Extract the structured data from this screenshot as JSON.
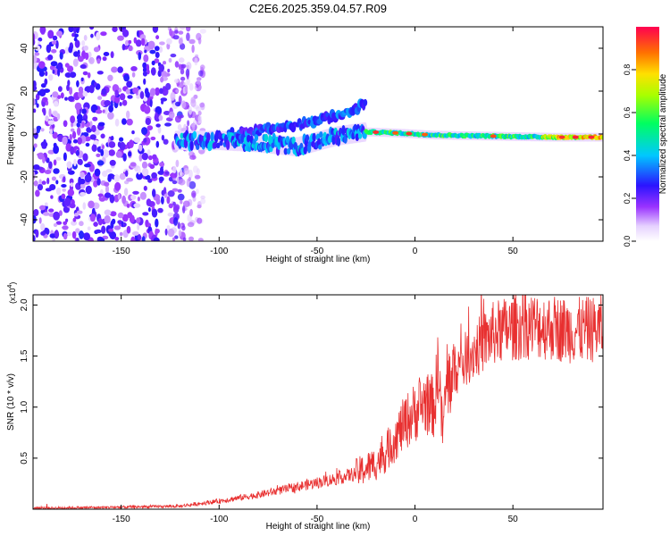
{
  "title": "C2E6.2025.359.04.57.R09",
  "chart_data": [
    {
      "type": "heatmap",
      "name": "spectrogram",
      "xlabel": "Height of straight line (km)",
      "ylabel": "Frequency (Hz)",
      "xlim": [
        -195,
        96
      ],
      "ylim": [
        -50,
        50
      ],
      "xticks": [
        -150,
        -100,
        -50,
        0,
        50
      ],
      "yticks": [
        -40,
        -20,
        0,
        20,
        40
      ],
      "noise_region_x": [
        -195,
        -108
      ],
      "signal_start_x": -122,
      "signal_track": [
        {
          "x": -120,
          "f": -3
        },
        {
          "x": -100,
          "f": -3
        },
        {
          "x": -80,
          "f": -4
        },
        {
          "x": -60,
          "f": -6
        },
        {
          "x": -40,
          "f": -1
        },
        {
          "x": -25,
          "f": 1
        },
        {
          "x": -10,
          "f": 0.5
        },
        {
          "x": 10,
          "f": -0.5
        },
        {
          "x": 40,
          "f": -1
        },
        {
          "x": 70,
          "f": -1.5
        },
        {
          "x": 96,
          "f": -1.5
        }
      ],
      "secondary_branch": [
        {
          "x": -95,
          "f": 0
        },
        {
          "x": -70,
          "f": 3
        },
        {
          "x": -50,
          "f": 6
        },
        {
          "x": -35,
          "f": 10
        },
        {
          "x": -25,
          "f": 14
        }
      ],
      "colorbar": {
        "label": "Normalized spectral amplitude",
        "ticks": [
          "0.0",
          "0.2",
          "0.4",
          "0.6",
          "0.8"
        ],
        "range": [
          0,
          1
        ]
      }
    },
    {
      "type": "line",
      "name": "snr",
      "xlabel": "Height of straight line (km)",
      "ylabel": "SNR (10 * v/v)",
      "multiplier": "(x10",
      "multiplier_exp": "4",
      "xlim": [
        -195,
        96
      ],
      "ylim": [
        0,
        2.1
      ],
      "xticks": [
        -150,
        -100,
        -50,
        0,
        50
      ],
      "yticks": [
        "0.5",
        "1.0",
        "1.5",
        "2.0"
      ],
      "color": "#e83030",
      "series": [
        {
          "name": "SNR",
          "x": [
            -195,
            -150,
            -120,
            -100,
            -80,
            -60,
            -40,
            -30,
            -20,
            -15,
            -10,
            -5,
            0,
            5,
            10,
            12,
            14,
            16,
            20,
            30,
            40,
            50,
            60,
            70,
            80,
            90,
            96
          ],
          "values": [
            0.01,
            0.02,
            0.03,
            0.08,
            0.14,
            0.22,
            0.3,
            0.35,
            0.45,
            0.55,
            0.7,
            0.85,
            0.95,
            1.05,
            1.0,
            1.45,
            0.75,
            1.2,
            1.35,
            1.55,
            1.72,
            1.78,
            1.8,
            1.78,
            1.75,
            1.76,
            1.78
          ]
        }
      ]
    }
  ]
}
